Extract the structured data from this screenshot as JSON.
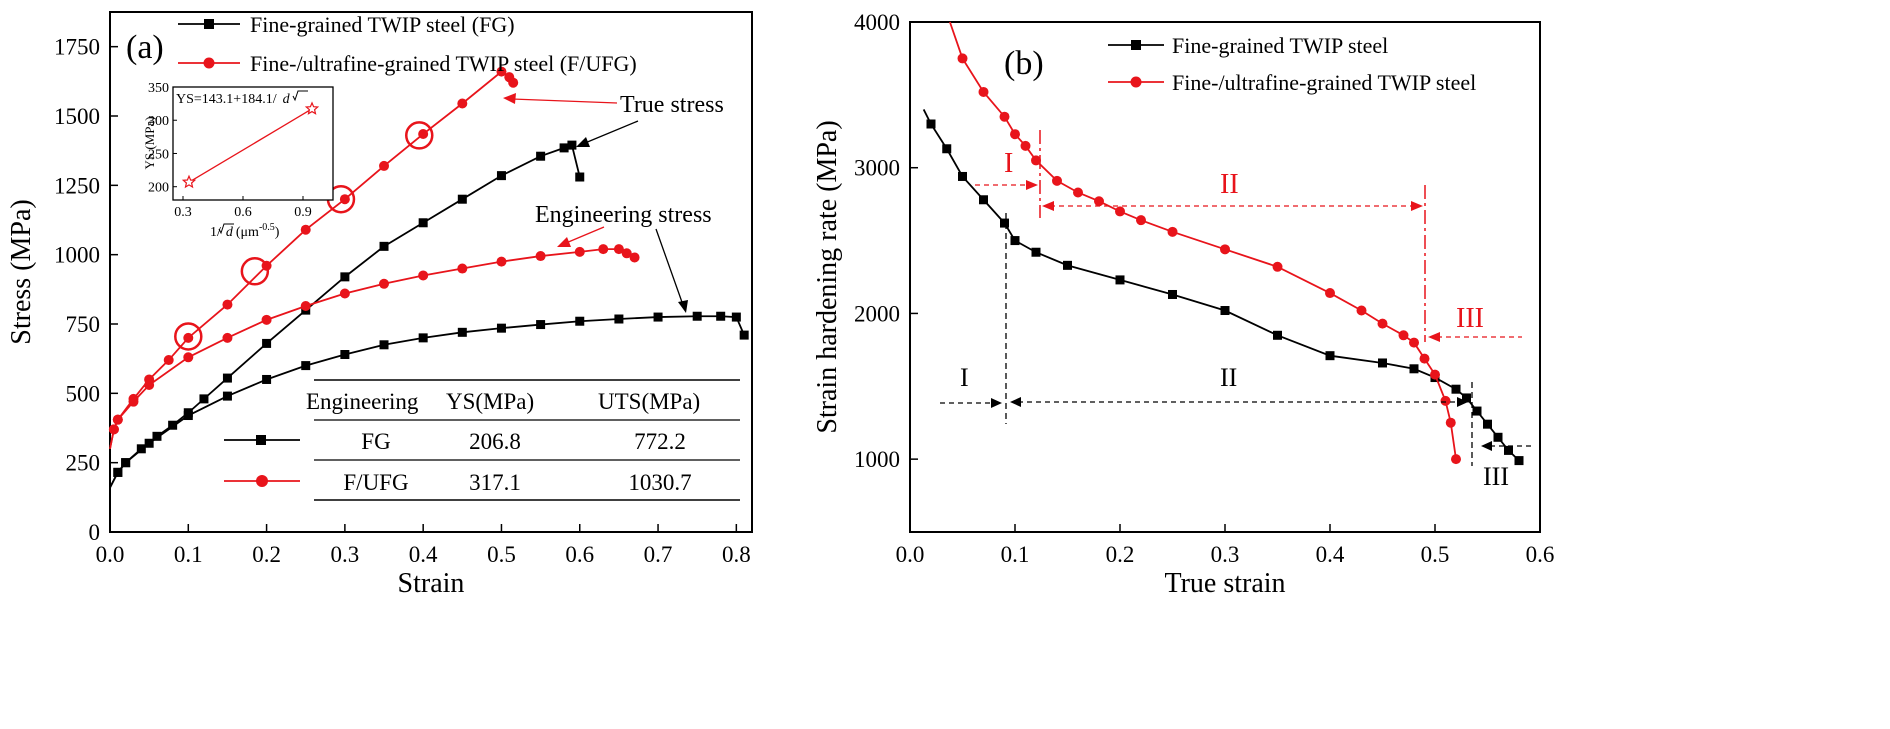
{
  "chart_data": [
    {
      "type": "line",
      "panel_label": "(a)",
      "xlabel": "Strain",
      "ylabel": "Stress (MPa)",
      "xlim": [
        0,
        0.82
      ],
      "ylim": [
        0,
        1875
      ],
      "xticks": [
        "0.0",
        "0.1",
        "0.2",
        "0.3",
        "0.4",
        "0.5",
        "0.6",
        "0.7",
        "0.8"
      ],
      "yticks": [
        "0",
        "250",
        "500",
        "750",
        "1000",
        "1250",
        "1500",
        "1750"
      ],
      "legend": [
        {
          "label": "Fine-grained TWIP steel (FG)",
          "color": "#000000",
          "marker": "square"
        },
        {
          "label": "Fine-/ultrafine-grained TWIP steel (F/UFG)",
          "color": "#e8141b",
          "marker": "circle"
        }
      ],
      "series": [
        {
          "name": "FG true stress",
          "color": "#000000",
          "marker": "square",
          "x": [
            0,
            0.01,
            0.02,
            0.04,
            0.06,
            0.08,
            0.1,
            0.12,
            0.15,
            0.2,
            0.25,
            0.3,
            0.35,
            0.4,
            0.45,
            0.5,
            0.55,
            0.58,
            0.59,
            0.6
          ],
          "y": [
            160,
            215,
            250,
            300,
            345,
            385,
            430,
            480,
            555,
            680,
            800,
            920,
            1030,
            1115,
            1200,
            1285,
            1355,
            1385,
            1395,
            1280
          ]
        },
        {
          "name": "FG engineering stress",
          "color": "#000000",
          "marker": "square",
          "x": [
            0,
            0.01,
            0.02,
            0.05,
            0.1,
            0.15,
            0.2,
            0.25,
            0.3,
            0.35,
            0.4,
            0.45,
            0.5,
            0.55,
            0.6,
            0.65,
            0.7,
            0.75,
            0.78,
            0.8,
            0.81
          ],
          "y": [
            160,
            215,
            250,
            320,
            420,
            490,
            550,
            600,
            640,
            675,
            700,
            720,
            735,
            748,
            760,
            768,
            775,
            778,
            778,
            775,
            710
          ]
        },
        {
          "name": "F/UFG true stress",
          "color": "#e8141b",
          "marker": "circle",
          "x": [
            0,
            0.005,
            0.01,
            0.03,
            0.05,
            0.075,
            0.1,
            0.15,
            0.2,
            0.25,
            0.3,
            0.35,
            0.4,
            0.45,
            0.5,
            0.51,
            0.515
          ],
          "y": [
            300,
            370,
            405,
            480,
            550,
            620,
            700,
            820,
            960,
            1090,
            1200,
            1320,
            1435,
            1545,
            1660,
            1640,
            1620
          ]
        },
        {
          "name": "F/UFG engineering stress",
          "color": "#e8141b",
          "marker": "circle",
          "x": [
            0,
            0.005,
            0.01,
            0.03,
            0.05,
            0.1,
            0.15,
            0.2,
            0.25,
            0.3,
            0.35,
            0.4,
            0.45,
            0.5,
            0.55,
            0.6,
            0.63,
            0.65,
            0.66,
            0.67
          ],
          "y": [
            300,
            370,
            405,
            470,
            530,
            630,
            700,
            765,
            815,
            860,
            895,
            925,
            950,
            975,
            995,
            1010,
            1020,
            1020,
            1005,
            990
          ]
        }
      ],
      "highlight_points": {
        "x": [
          0.1,
          0.185,
          0.295,
          0.395
        ],
        "y": [
          705,
          940,
          1200,
          1430
        ]
      },
      "annotations": [
        "True stress",
        "Engineering stress"
      ],
      "table": {
        "headers": [
          "Engineering",
          "YS(MPa)",
          "UTS(MPa)"
        ],
        "rows": [
          {
            "name": "FG",
            "ys": "206.8",
            "uts": "772.2"
          },
          {
            "name": "F/UFG",
            "ys": "317.1",
            "uts": "1030.7"
          }
        ]
      },
      "inset": {
        "type": "scatter",
        "equation_prefix": "YS=143.1+184.1/",
        "equation_root": "d",
        "ylabel": "YS (MPa)",
        "xlabel_prefix": "1/",
        "xlabel_root": "d",
        "xlabel_unit": "(μm",
        "xlabel_exp": "-0.5",
        "xlabel_close": ")",
        "xlim": [
          0.25,
          1.05
        ],
        "ylim": [
          180,
          350
        ],
        "xticks": [
          "0.3",
          "0.6",
          "0.9"
        ],
        "yticks": [
          "200",
          "250",
          "300",
          "350"
        ],
        "points": [
          {
            "x": 0.33,
            "y": 206.8
          },
          {
            "x": 0.945,
            "y": 317.1
          }
        ]
      }
    },
    {
      "type": "line",
      "panel_label": "(b)",
      "xlabel": "True strain",
      "ylabel": "Strain hardening rate (MPa)",
      "xlim": [
        0,
        0.6
      ],
      "ylim": [
        500,
        4000
      ],
      "xticks": [
        "0.0",
        "0.1",
        "0.2",
        "0.3",
        "0.4",
        "0.5",
        "0.6"
      ],
      "yticks": [
        "1000",
        "2000",
        "3000",
        "4000"
      ],
      "legend": [
        {
          "label": "Fine-grained TWIP steel",
          "color": "#000000",
          "marker": "square"
        },
        {
          "label": "Fine-/ultrafine-grained TWIP steel",
          "color": "#e8141b",
          "marker": "circle"
        }
      ],
      "series": [
        {
          "name": "Fine-grained TWIP steel",
          "color": "#000000",
          "marker": "square",
          "x": [
            0.013,
            0.02,
            0.035,
            0.05,
            0.07,
            0.09,
            0.1,
            0.12,
            0.15,
            0.2,
            0.25,
            0.3,
            0.35,
            0.4,
            0.45,
            0.48,
            0.5,
            0.52,
            0.53,
            0.54,
            0.55,
            0.56,
            0.57,
            0.58
          ],
          "y": [
            3400,
            3300,
            3130,
            2940,
            2780,
            2620,
            2500,
            2420,
            2330,
            2230,
            2130,
            2020,
            1850,
            1710,
            1660,
            1620,
            1560,
            1480,
            1420,
            1330,
            1240,
            1150,
            1060,
            990
          ]
        },
        {
          "name": "Fine-/ultrafine-grained TWIP steel",
          "color": "#e8141b",
          "marker": "circle",
          "x": [
            0.038,
            0.05,
            0.07,
            0.09,
            0.1,
            0.11,
            0.12,
            0.14,
            0.16,
            0.18,
            0.2,
            0.22,
            0.25,
            0.3,
            0.35,
            0.4,
            0.43,
            0.45,
            0.47,
            0.48,
            0.49,
            0.5,
            0.51,
            0.515,
            0.52
          ],
          "y": [
            4000,
            3750,
            3520,
            3350,
            3230,
            3150,
            3050,
            2910,
            2830,
            2770,
            2700,
            2640,
            2560,
            2440,
            2320,
            2140,
            2020,
            1930,
            1850,
            1800,
            1690,
            1580,
            1400,
            1250,
            1000
          ]
        }
      ],
      "regions": {
        "fg": [
          "I",
          "II",
          "III"
        ],
        "fufg": [
          "I",
          "II",
          "III"
        ]
      }
    }
  ]
}
